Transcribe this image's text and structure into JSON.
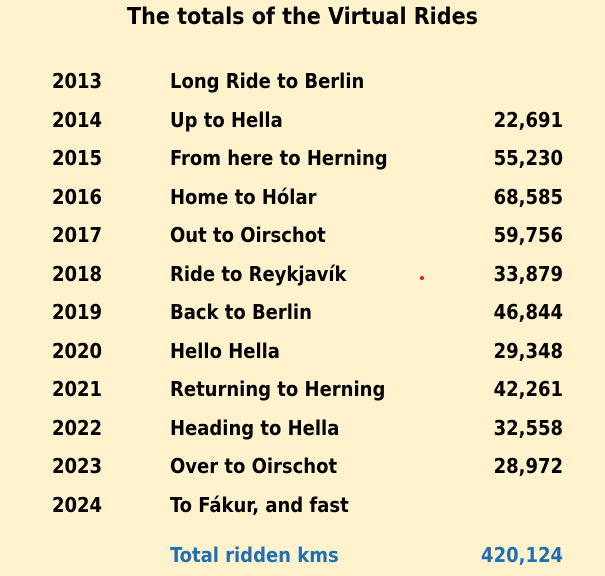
{
  "title": "The totals of the Virtual Rides",
  "rides": [
    {
      "year": "2013",
      "name": "Long Ride to Berlin",
      "km": ""
    },
    {
      "year": "2014",
      "name": "Up to Hella",
      "km": "22,691"
    },
    {
      "year": "2015",
      "name": "From here to Herning",
      "km": "55,230"
    },
    {
      "year": "2016",
      "name": "Home to Hólar",
      "km": "68,585"
    },
    {
      "year": "2017",
      "name": "Out to Oirschot",
      "km": "59,756"
    },
    {
      "year": "2018",
      "name": "Ride to Reykjavík",
      "km": "33,879"
    },
    {
      "year": "2019",
      "name": "Back to Berlin",
      "km": "46,844"
    },
    {
      "year": "2020",
      "name": "Hello Hella",
      "km": "29,348"
    },
    {
      "year": "2021",
      "name": "Returning to Herning",
      "km": "42,261"
    },
    {
      "year": "2022",
      "name": "Heading to Hella",
      "km": "32,558"
    },
    {
      "year": "2023",
      "name": "Over to Oirschot",
      "km": "28,972"
    },
    {
      "year": "2024",
      "name": "To Fákur, and fast",
      "km": ""
    }
  ],
  "total": {
    "label": "Total ridden kms",
    "value": "420,124"
  },
  "colors": {
    "background": "#fff2cc",
    "text": "#000000",
    "total": "#1f6fb5",
    "dot": "#e0201b"
  }
}
